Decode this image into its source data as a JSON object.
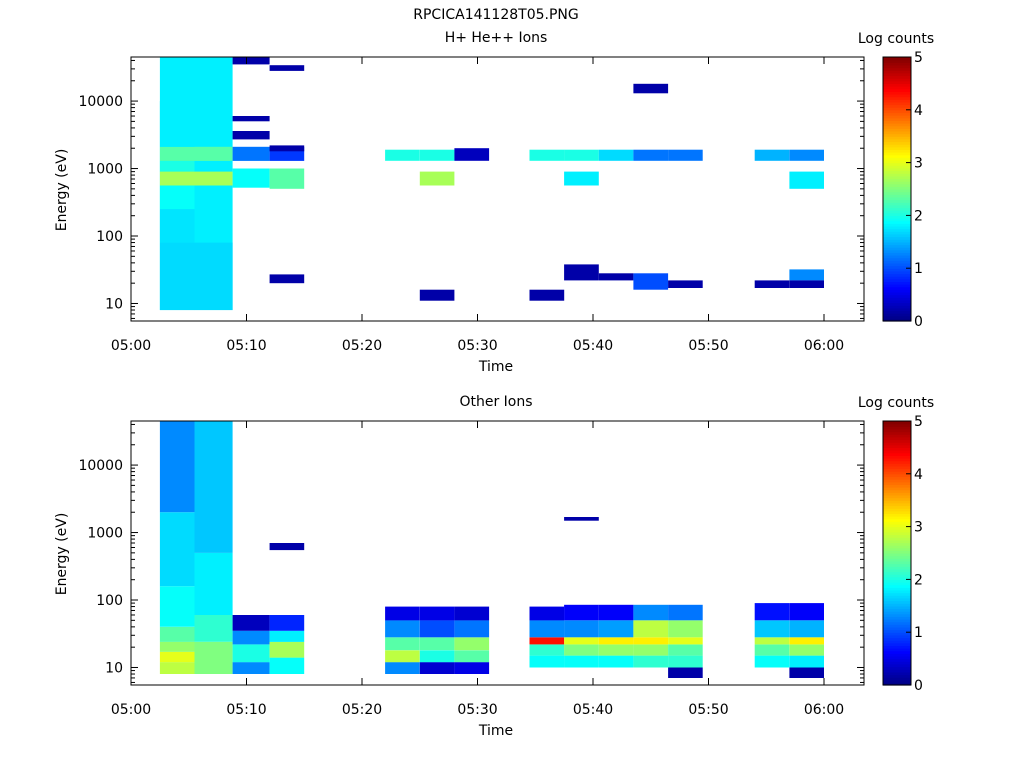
{
  "figure": {
    "title": "RPCICA141128T05.PNG"
  },
  "chart_data": [
    {
      "type": "heatmap",
      "title": "H+ He++ Ions",
      "xlabel": "Time",
      "ylabel": "Energy (eV)",
      "yscale": "log",
      "xticks": [
        "05:00",
        "05:10",
        "05:20",
        "05:30",
        "05:40",
        "05:50",
        "06:00"
      ],
      "yticks": [
        "10",
        "100",
        "1000",
        "10000"
      ],
      "colorbar": {
        "label": "Log counts",
        "range": [
          0,
          5
        ],
        "ticks": [
          "0",
          "1",
          "2",
          "3",
          "4",
          "5"
        ]
      },
      "columns": [
        {
          "start": "05:02.5",
          "end": "05:05.5",
          "bands": [
            [
              8,
              45000,
              1.8
            ],
            [
              900,
              1300,
              2.0
            ],
            [
              1300,
              2100,
              2.3
            ],
            [
              2100,
              10000,
              1.8
            ],
            [
              560,
              900,
              2.7
            ],
            [
              250,
              560,
              1.9
            ],
            [
              80,
              250,
              1.75
            ],
            [
              8,
              80,
              1.7
            ]
          ]
        },
        {
          "start": "05:05.5",
          "end": "05:08.8",
          "bands": [
            [
              8,
              45000,
              1.8
            ],
            [
              1300,
              2100,
              2.3
            ],
            [
              560,
              900,
              2.7
            ],
            [
              8,
              80,
              1.7
            ]
          ]
        },
        {
          "start": "05:08.8",
          "end": "05:12",
          "bands": [
            [
              1300,
              2100,
              1.2
            ],
            [
              520,
              1000,
              1.9
            ],
            [
              2700,
              3600,
              0.2
            ],
            [
              35000,
              45000,
              0.2
            ],
            [
              5000,
              6000,
              0.2
            ]
          ]
        },
        {
          "start": "05:12",
          "end": "05:15",
          "bands": [
            [
              1300,
              2100,
              0.9
            ],
            [
              500,
              1000,
              2.3
            ],
            [
              20,
              27,
              0.2
            ],
            [
              28000,
              34000,
              0.2
            ],
            [
              1800,
              2200,
              0.2
            ]
          ]
        },
        {
          "start": "05:22",
          "end": "05:25",
          "bands": [
            [
              1300,
              1900,
              2.0
            ]
          ]
        },
        {
          "start": "05:25",
          "end": "05:28",
          "bands": [
            [
              1300,
              1900,
              2.0
            ],
            [
              560,
              900,
              2.7
            ],
            [
              11,
              16,
              0.2
            ]
          ]
        },
        {
          "start": "05:28",
          "end": "05:31",
          "bands": [
            [
              1300,
              2000,
              0.3
            ]
          ]
        },
        {
          "start": "05:34.5",
          "end": "05:37.5",
          "bands": [
            [
              1300,
              1900,
              2.0
            ],
            [
              11,
              16,
              0.2
            ]
          ]
        },
        {
          "start": "05:37.5",
          "end": "05:40.5",
          "bands": [
            [
              1300,
              1900,
              2.0
            ],
            [
              560,
              900,
              1.8
            ],
            [
              22,
              38,
              0.2
            ]
          ]
        },
        {
          "start": "05:40.5",
          "end": "05:43.5",
          "bands": [
            [
              1300,
              1900,
              1.7
            ],
            [
              22,
              28,
              0.2
            ]
          ]
        },
        {
          "start": "05:43.5",
          "end": "05:46.5",
          "bands": [
            [
              1300,
              1900,
              1.2
            ],
            [
              16,
              28,
              1.0
            ],
            [
              13000,
              18000,
              0.2
            ]
          ]
        },
        {
          "start": "05:46.5",
          "end": "05:49.5",
          "bands": [
            [
              1300,
              1900,
              1.2
            ],
            [
              17,
              22,
              0.2
            ]
          ]
        },
        {
          "start": "05:54",
          "end": "05:57",
          "bands": [
            [
              1300,
              1900,
              1.5
            ],
            [
              17,
              22,
              0.2
            ]
          ]
        },
        {
          "start": "05:57",
          "end": "06:00",
          "bands": [
            [
              1300,
              1900,
              1.3
            ],
            [
              500,
              900,
              1.8
            ],
            [
              22,
              32,
              1.3
            ],
            [
              17,
              22,
              0.2
            ]
          ]
        }
      ]
    },
    {
      "type": "heatmap",
      "title": "Other Ions",
      "xlabel": "Time",
      "ylabel": "Energy (eV)",
      "yscale": "log",
      "xticks": [
        "05:00",
        "05:10",
        "05:20",
        "05:30",
        "05:40",
        "05:50",
        "06:00"
      ],
      "yticks": [
        "10",
        "100",
        "1000",
        "10000"
      ],
      "colorbar": {
        "label": "Log counts",
        "range": [
          0,
          5
        ],
        "ticks": [
          "0",
          "1",
          "2",
          "3",
          "4",
          "5"
        ]
      },
      "columns": [
        {
          "start": "05:02.5",
          "end": "05:05.5",
          "bands": [
            [
              8,
              12,
              2.8
            ],
            [
              12,
              17,
              3.0
            ],
            [
              17,
              24,
              2.6
            ],
            [
              24,
              40,
              2.3
            ],
            [
              40,
              160,
              1.9
            ],
            [
              160,
              2000,
              1.7
            ],
            [
              2000,
              45000,
              1.3
            ]
          ]
        },
        {
          "start": "05:05.5",
          "end": "05:08.8",
          "bands": [
            [
              8,
              24,
              2.5
            ],
            [
              24,
              60,
              2.1
            ],
            [
              60,
              500,
              1.8
            ],
            [
              500,
              45000,
              1.6
            ]
          ]
        },
        {
          "start": "05:08.8",
          "end": "05:12",
          "bands": [
            [
              8,
              12,
              1.3
            ],
            [
              12,
              22,
              2.0
            ],
            [
              22,
              35,
              1.3
            ],
            [
              35,
              60,
              0.3
            ]
          ]
        },
        {
          "start": "05:12",
          "end": "05:15",
          "bands": [
            [
              8,
              14,
              1.9
            ],
            [
              14,
              24,
              2.7
            ],
            [
              24,
              35,
              1.8
            ],
            [
              35,
              60,
              0.8
            ],
            [
              550,
              700,
              0.2
            ]
          ]
        },
        {
          "start": "05:22",
          "end": "05:25",
          "bands": [
            [
              8,
              12,
              1.3
            ],
            [
              12,
              18,
              2.8
            ],
            [
              18,
              28,
              2.3
            ],
            [
              28,
              50,
              1.3
            ],
            [
              50,
              80,
              0.5
            ]
          ]
        },
        {
          "start": "05:25",
          "end": "05:28",
          "bands": [
            [
              8,
              12,
              0.4
            ],
            [
              12,
              18,
              2.0
            ],
            [
              18,
              28,
              2.3
            ],
            [
              28,
              50,
              1.0
            ],
            [
              50,
              80,
              0.5
            ]
          ]
        },
        {
          "start": "05:28",
          "end": "05:31",
          "bands": [
            [
              8,
              12,
              0.5
            ],
            [
              12,
              18,
              2.3
            ],
            [
              18,
              28,
              2.6
            ],
            [
              28,
              50,
              1.2
            ],
            [
              50,
              80,
              0.4
            ]
          ]
        },
        {
          "start": "05:34.5",
          "end": "05:37.5",
          "bands": [
            [
              10,
              15,
              1.9
            ],
            [
              15,
              22,
              2.1
            ],
            [
              22,
              28,
              4.3
            ],
            [
              28,
              50,
              1.3
            ],
            [
              50,
              80,
              0.5
            ]
          ]
        },
        {
          "start": "05:37.5",
          "end": "05:40.5",
          "bands": [
            [
              10,
              15,
              1.9
            ],
            [
              15,
              22,
              2.5
            ],
            [
              22,
              28,
              3.0
            ],
            [
              28,
              50,
              1.3
            ],
            [
              50,
              85,
              0.6
            ],
            [
              1500,
              1700,
              0.2
            ]
          ]
        },
        {
          "start": "05:40.5",
          "end": "05:43.5",
          "bands": [
            [
              10,
              15,
              1.9
            ],
            [
              15,
              22,
              2.6
            ],
            [
              22,
              28,
              3.2
            ],
            [
              28,
              50,
              1.4
            ],
            [
              50,
              85,
              0.6
            ]
          ]
        },
        {
          "start": "05:43.5",
          "end": "05:46.5",
          "bands": [
            [
              10,
              15,
              2.1
            ],
            [
              15,
              22,
              2.6
            ],
            [
              22,
              28,
              3.2
            ],
            [
              28,
              50,
              2.8
            ],
            [
              50,
              85,
              1.3
            ]
          ]
        },
        {
          "start": "05:46.5",
          "end": "05:49.5",
          "bands": [
            [
              7,
              10,
              0.2
            ],
            [
              10,
              15,
              2.1
            ],
            [
              15,
              22,
              2.3
            ],
            [
              22,
              28,
              3.0
            ],
            [
              28,
              50,
              2.6
            ],
            [
              50,
              85,
              1.2
            ]
          ]
        },
        {
          "start": "05:54",
          "end": "05:57",
          "bands": [
            [
              10,
              15,
              1.9
            ],
            [
              15,
              22,
              2.3
            ],
            [
              22,
              28,
              2.8
            ],
            [
              28,
              50,
              1.6
            ],
            [
              50,
              90,
              0.7
            ]
          ]
        },
        {
          "start": "05:57",
          "end": "06:00",
          "bands": [
            [
              7,
              10,
              0.2
            ],
            [
              10,
              15,
              1.8
            ],
            [
              15,
              22,
              2.6
            ],
            [
              22,
              28,
              3.2
            ],
            [
              28,
              50,
              1.5
            ],
            [
              50,
              90,
              0.6
            ]
          ]
        }
      ]
    }
  ]
}
